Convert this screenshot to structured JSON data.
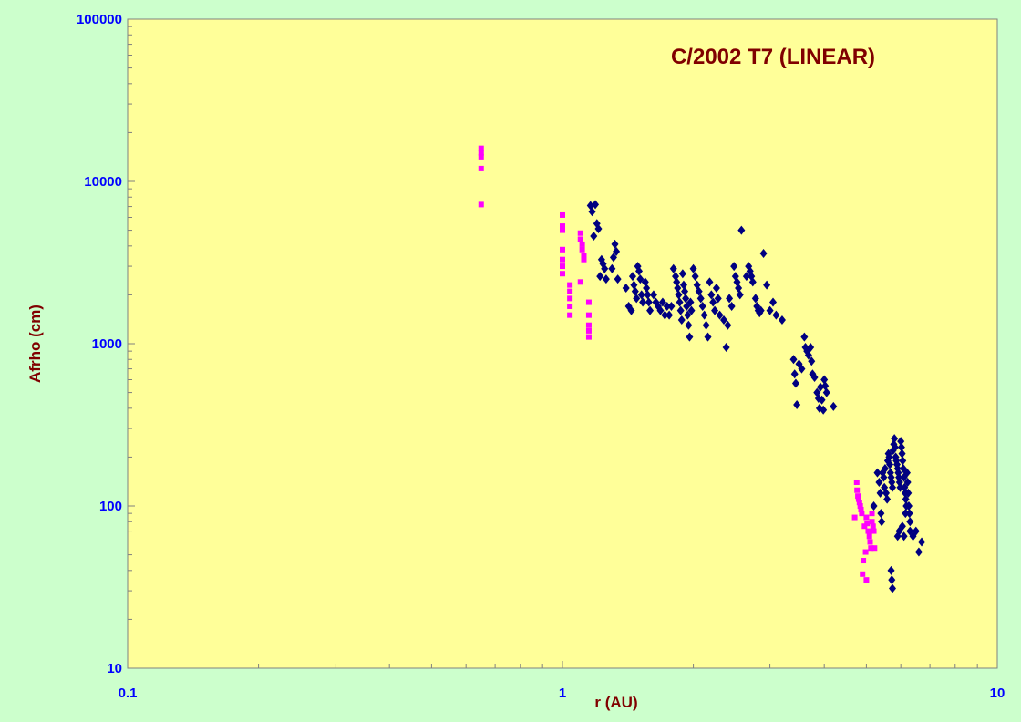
{
  "chart_data": {
    "type": "scatter",
    "title": "C/2002 T7 (LINEAR)",
    "xlabel": "r (AU)",
    "ylabel": "Afrho (cm)",
    "x_scale": "log",
    "y_scale": "log",
    "xlim": [
      0.1,
      10
    ],
    "ylim": [
      10,
      100000
    ],
    "x_tick_labels": [
      "0.1",
      "1",
      "10"
    ],
    "y_tick_labels": [
      "10",
      "100",
      "1000",
      "10000",
      "100000"
    ],
    "grid": false,
    "legend": "none",
    "colors": {
      "page_background": "#ccffcc",
      "plot_background": "#ffff99",
      "tick_label": "#0000ff",
      "axis_title": "#800000",
      "title": "#800000"
    },
    "series": [
      {
        "marker": "diamond",
        "color": "#000080",
        "points": [
          [
            1.16,
            7100
          ],
          [
            1.17,
            6500
          ],
          [
            1.19,
            7200
          ],
          [
            1.2,
            5500
          ],
          [
            1.21,
            5100
          ],
          [
            1.22,
            2600
          ],
          [
            1.23,
            3300
          ],
          [
            1.24,
            3100
          ],
          [
            1.25,
            2900
          ],
          [
            1.26,
            2500
          ],
          [
            1.18,
            4600
          ],
          [
            1.32,
            4100
          ],
          [
            1.33,
            3700
          ],
          [
            1.31,
            3400
          ],
          [
            1.3,
            2900
          ],
          [
            1.34,
            2500
          ],
          [
            1.4,
            2200
          ],
          [
            1.42,
            1700
          ],
          [
            1.44,
            1600
          ],
          [
            1.45,
            2600
          ],
          [
            1.46,
            2300
          ],
          [
            1.47,
            2100
          ],
          [
            1.48,
            1900
          ],
          [
            1.49,
            3000
          ],
          [
            1.5,
            2800
          ],
          [
            1.51,
            2500
          ],
          [
            1.52,
            2000
          ],
          [
            1.53,
            1800
          ],
          [
            1.55,
            2400
          ],
          [
            1.56,
            2200
          ],
          [
            1.57,
            2000
          ],
          [
            1.58,
            1800
          ],
          [
            1.59,
            1600
          ],
          [
            1.62,
            2000
          ],
          [
            1.64,
            1800
          ],
          [
            1.66,
            1700
          ],
          [
            1.68,
            1600
          ],
          [
            1.7,
            1800
          ],
          [
            1.72,
            1500
          ],
          [
            1.74,
            1700
          ],
          [
            1.76,
            1500
          ],
          [
            1.78,
            1700
          ],
          [
            1.8,
            2900
          ],
          [
            1.82,
            2600
          ],
          [
            1.83,
            2400
          ],
          [
            1.84,
            2200
          ],
          [
            1.85,
            2000
          ],
          [
            1.86,
            1800
          ],
          [
            1.87,
            1600
          ],
          [
            1.88,
            1400
          ],
          [
            1.89,
            2700
          ],
          [
            1.9,
            2300
          ],
          [
            1.91,
            2100
          ],
          [
            1.92,
            1900
          ],
          [
            1.93,
            1700
          ],
          [
            1.94,
            1500
          ],
          [
            1.95,
            1300
          ],
          [
            1.96,
            1100
          ],
          [
            1.97,
            1800
          ],
          [
            1.98,
            1600
          ],
          [
            2.0,
            2900
          ],
          [
            2.02,
            2600
          ],
          [
            2.04,
            2300
          ],
          [
            2.06,
            2100
          ],
          [
            2.08,
            1900
          ],
          [
            2.1,
            1700
          ],
          [
            2.12,
            1500
          ],
          [
            2.14,
            1300
          ],
          [
            2.16,
            1100
          ],
          [
            2.18,
            2400
          ],
          [
            2.2,
            2000
          ],
          [
            2.22,
            1800
          ],
          [
            2.24,
            1600
          ],
          [
            2.26,
            2200
          ],
          [
            2.28,
            1900
          ],
          [
            2.3,
            1500
          ],
          [
            2.35,
            1400
          ],
          [
            2.38,
            950
          ],
          [
            2.4,
            1300
          ],
          [
            2.42,
            1900
          ],
          [
            2.45,
            1700
          ],
          [
            2.48,
            3000
          ],
          [
            2.5,
            2600
          ],
          [
            2.52,
            2400
          ],
          [
            2.54,
            2200
          ],
          [
            2.56,
            2000
          ],
          [
            2.58,
            5000
          ],
          [
            2.65,
            2600
          ],
          [
            2.68,
            3000
          ],
          [
            2.7,
            2800
          ],
          [
            2.72,
            2600
          ],
          [
            2.74,
            2400
          ],
          [
            2.78,
            1900
          ],
          [
            2.8,
            1700
          ],
          [
            2.82,
            1600
          ],
          [
            2.84,
            1550
          ],
          [
            2.86,
            1600
          ],
          [
            2.9,
            3600
          ],
          [
            2.95,
            2300
          ],
          [
            3.0,
            1600
          ],
          [
            3.05,
            1800
          ],
          [
            3.1,
            1500
          ],
          [
            3.2,
            1400
          ],
          [
            3.4,
            800
          ],
          [
            3.42,
            650
          ],
          [
            3.44,
            570
          ],
          [
            3.46,
            420
          ],
          [
            3.5,
            750
          ],
          [
            3.55,
            700
          ],
          [
            3.6,
            1100
          ],
          [
            3.62,
            950
          ],
          [
            3.65,
            900
          ],
          [
            3.68,
            850
          ],
          [
            3.72,
            950
          ],
          [
            3.74,
            780
          ],
          [
            3.76,
            650
          ],
          [
            3.8,
            620
          ],
          [
            3.85,
            500
          ],
          [
            3.88,
            460
          ],
          [
            3.9,
            400
          ],
          [
            3.92,
            540
          ],
          [
            3.95,
            450
          ],
          [
            3.98,
            390
          ],
          [
            4.0,
            600
          ],
          [
            4.02,
            550
          ],
          [
            4.05,
            500
          ],
          [
            4.2,
            410
          ],
          [
            5.2,
            100
          ],
          [
            5.3,
            160
          ],
          [
            5.35,
            140
          ],
          [
            5.38,
            120
          ],
          [
            5.4,
            90
          ],
          [
            5.42,
            80
          ],
          [
            5.45,
            160
          ],
          [
            5.48,
            150
          ],
          [
            5.5,
            130
          ],
          [
            5.52,
            170
          ],
          [
            5.55,
            120
          ],
          [
            5.58,
            110
          ],
          [
            5.6,
            190
          ],
          [
            5.62,
            210
          ],
          [
            5.64,
            200
          ],
          [
            5.66,
            180
          ],
          [
            5.68,
            160
          ],
          [
            5.7,
            150
          ],
          [
            5.72,
            140
          ],
          [
            5.74,
            130
          ],
          [
            5.76,
            220
          ],
          [
            5.78,
            240
          ],
          [
            5.8,
            260
          ],
          [
            5.82,
            230
          ],
          [
            5.84,
            200
          ],
          [
            5.86,
            190
          ],
          [
            5.88,
            180
          ],
          [
            5.9,
            170
          ],
          [
            5.92,
            160
          ],
          [
            5.94,
            150
          ],
          [
            5.96,
            140
          ],
          [
            5.98,
            130
          ],
          [
            6.0,
            250
          ],
          [
            6.02,
            230
          ],
          [
            6.04,
            210
          ],
          [
            6.06,
            190
          ],
          [
            6.08,
            170
          ],
          [
            6.1,
            150
          ],
          [
            6.12,
            130
          ],
          [
            6.14,
            120
          ],
          [
            6.16,
            110
          ],
          [
            6.18,
            100
          ],
          [
            6.2,
            160
          ],
          [
            6.22,
            140
          ],
          [
            6.24,
            120
          ],
          [
            6.26,
            100
          ],
          [
            6.28,
            90
          ],
          [
            6.3,
            80
          ],
          [
            5.7,
            40
          ],
          [
            5.72,
            35
          ],
          [
            5.74,
            31
          ],
          [
            5.9,
            65
          ],
          [
            5.95,
            70
          ],
          [
            6.05,
            75
          ],
          [
            6.1,
            65
          ],
          [
            6.15,
            90
          ],
          [
            6.3,
            70
          ],
          [
            6.4,
            65
          ],
          [
            6.5,
            70
          ],
          [
            6.6,
            52
          ],
          [
            6.7,
            60
          ]
        ]
      },
      {
        "marker": "square",
        "color": "#ff00ff",
        "points": [
          [
            0.65,
            16000
          ],
          [
            0.65,
            15000
          ],
          [
            0.65,
            14200
          ],
          [
            0.65,
            12000
          ],
          [
            0.65,
            7200
          ],
          [
            1.0,
            6200
          ],
          [
            1.0,
            5300
          ],
          [
            1.0,
            5000
          ],
          [
            1.0,
            3800
          ],
          [
            1.0,
            3300
          ],
          [
            1.0,
            3000
          ],
          [
            1.0,
            2700
          ],
          [
            1.04,
            2300
          ],
          [
            1.04,
            2100
          ],
          [
            1.04,
            1900
          ],
          [
            1.04,
            1700
          ],
          [
            1.04,
            1500
          ],
          [
            1.1,
            4800
          ],
          [
            1.1,
            4400
          ],
          [
            1.11,
            4100
          ],
          [
            1.11,
            3800
          ],
          [
            1.12,
            3500
          ],
          [
            1.12,
            3300
          ],
          [
            1.1,
            2400
          ],
          [
            1.15,
            1800
          ],
          [
            1.15,
            1500
          ],
          [
            1.15,
            1300
          ],
          [
            1.15,
            1200
          ],
          [
            1.15,
            1100
          ],
          [
            4.7,
            85
          ],
          [
            4.75,
            140
          ],
          [
            4.76,
            125
          ],
          [
            4.78,
            115
          ],
          [
            4.8,
            110
          ],
          [
            4.82,
            105
          ],
          [
            4.84,
            100
          ],
          [
            4.86,
            95
          ],
          [
            4.88,
            90
          ],
          [
            4.9,
            38
          ],
          [
            4.92,
            46
          ],
          [
            4.95,
            75
          ],
          [
            5.0,
            85
          ],
          [
            5.02,
            78
          ],
          [
            5.05,
            70
          ],
          [
            5.08,
            65
          ],
          [
            5.1,
            60
          ],
          [
            5.12,
            55
          ],
          [
            5.15,
            90
          ],
          [
            5.18,
            75
          ],
          [
            5.2,
            70
          ],
          [
            5.22,
            55
          ],
          [
            5.0,
            35
          ],
          [
            4.98,
            52
          ],
          [
            5.15,
            80
          ]
        ]
      }
    ]
  }
}
